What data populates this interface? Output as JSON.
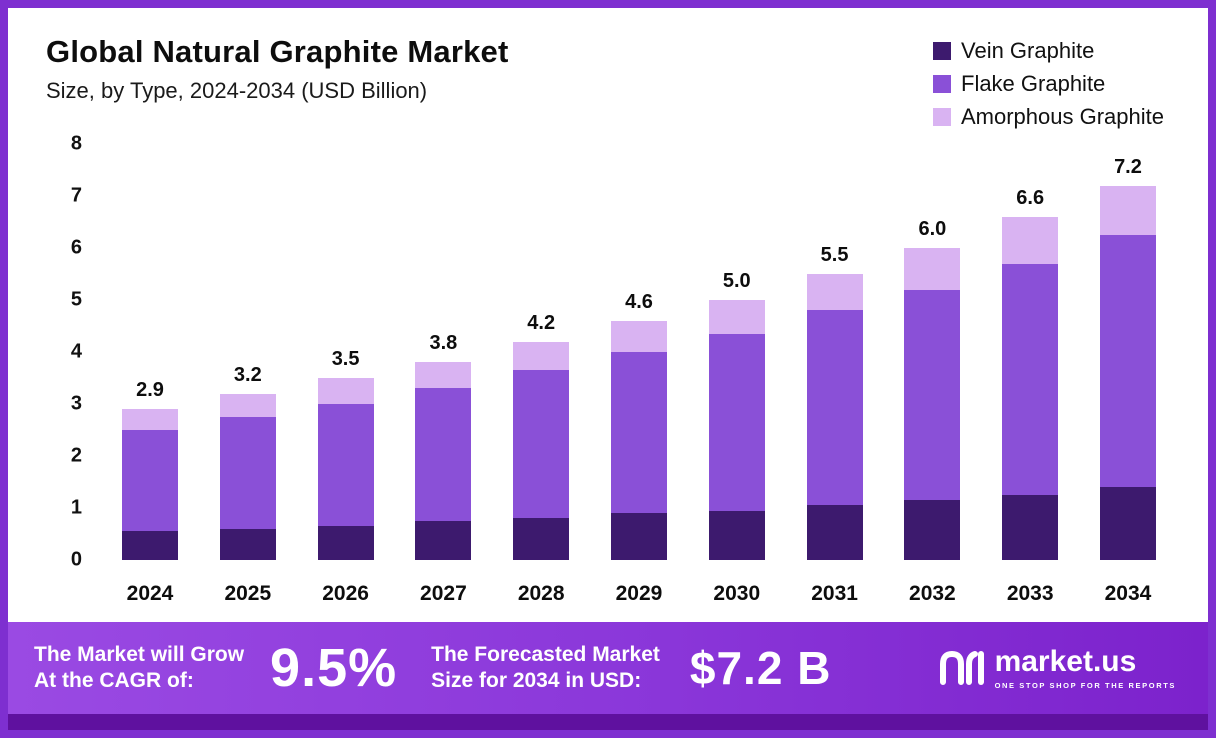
{
  "title": "Global Natural Graphite Market",
  "subtitle": "Size, by Type, 2024-2034 (USD Billion)",
  "colors": {
    "border": "#7e2fd0",
    "banner_gradient_left": "#9a4ae3",
    "banner_gradient_right": "#7c22cc",
    "banner_strip": "#5f119f",
    "vein": "#3d1a6e",
    "flake": "#8a50d7",
    "amorphous": "#d9b3f2"
  },
  "chart_data": {
    "type": "bar",
    "stacked": true,
    "title": "Global Natural Graphite Market Size, by Type, 2024-2034 (USD Billion)",
    "categories": [
      "2024",
      "2025",
      "2026",
      "2027",
      "2028",
      "2029",
      "2030",
      "2031",
      "2032",
      "2033",
      "2034"
    ],
    "series": [
      {
        "name": "Vein Graphite",
        "color": "#3d1a6e",
        "values": [
          0.55,
          0.6,
          0.65,
          0.75,
          0.8,
          0.9,
          0.95,
          1.05,
          1.15,
          1.25,
          1.4
        ]
      },
      {
        "name": "Flake Graphite",
        "color": "#8a50d7",
        "values": [
          1.95,
          2.15,
          2.35,
          2.55,
          2.85,
          3.1,
          3.4,
          3.75,
          4.05,
          4.45,
          4.85
        ]
      },
      {
        "name": "Amorphous Graphite",
        "color": "#d9b3f2",
        "values": [
          0.4,
          0.45,
          0.5,
          0.5,
          0.55,
          0.6,
          0.65,
          0.7,
          0.8,
          0.9,
          0.95
        ]
      }
    ],
    "totals": [
      2.9,
      3.2,
      3.5,
      3.8,
      4.2,
      4.6,
      5.0,
      5.5,
      6.0,
      6.6,
      7.2
    ],
    "total_labels": [
      "2.9",
      "3.2",
      "3.5",
      "3.8",
      "4.2",
      "4.6",
      "5.0",
      "5.5",
      "6.0",
      "6.6",
      "7.2"
    ],
    "ylim": [
      0,
      8
    ],
    "yticks": [
      "8",
      "7",
      "6",
      "5",
      "4",
      "3",
      "2",
      "1",
      "0"
    ],
    "xlabel": "",
    "ylabel": "",
    "grid": false,
    "legend_position": "top-right"
  },
  "banner": {
    "cagr_label_line1": "The Market will Grow",
    "cagr_label_line2": "At the CAGR of:",
    "cagr_value": "9.5%",
    "forecast_label_line1": "The Forecasted Market",
    "forecast_label_line2": "Size for 2034 in USD:",
    "forecast_value": "$7.2 B",
    "brand": "market.us",
    "brand_tagline": "ONE STOP SHOP FOR THE REPORTS"
  }
}
